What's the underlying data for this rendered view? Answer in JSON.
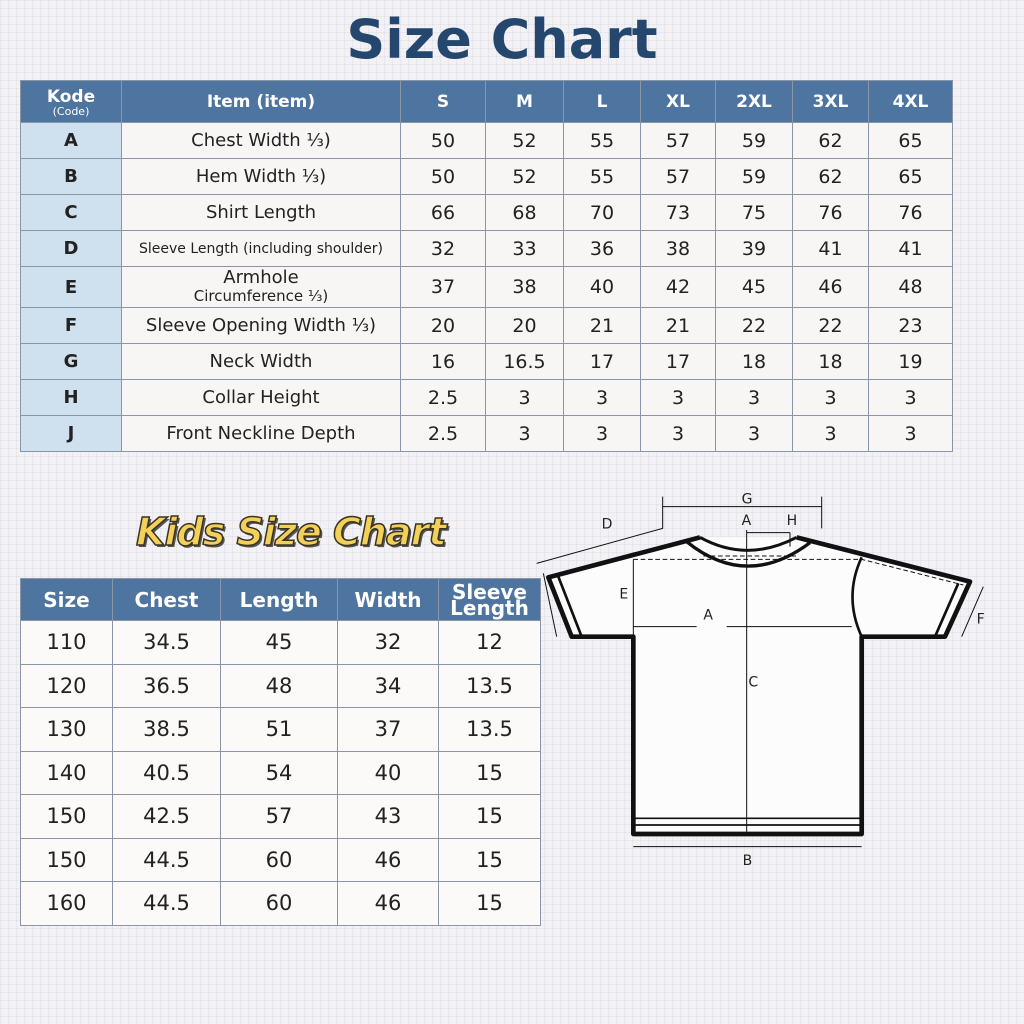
{
  "title": "Size Chart",
  "main_table": {
    "headers": {
      "code": "Kode",
      "code_sub": "(Code)",
      "item": "Item (item)",
      "sizes": [
        "S",
        "M",
        "L",
        "XL",
        "2XL",
        "3XL",
        "4XL"
      ]
    },
    "rows": [
      {
        "code": "A",
        "item": "Chest Width ⅓)",
        "values": [
          "50",
          "52",
          "55",
          "57",
          "59",
          "62",
          "65"
        ]
      },
      {
        "code": "B",
        "item": "Hem Width ⅓)",
        "values": [
          "50",
          "52",
          "55",
          "57",
          "59",
          "62",
          "65"
        ]
      },
      {
        "code": "C",
        "item": "Shirt Length",
        "values": [
          "66",
          "68",
          "70",
          "73",
          "75",
          "76",
          "76"
        ]
      },
      {
        "code": "D",
        "item": "Sleeve Length (including shoulder)",
        "values": [
          "32",
          "33",
          "36",
          "38",
          "39",
          "41",
          "41"
        ]
      },
      {
        "code": "E",
        "item": "Armhole",
        "item2": "Circumference ⅓)",
        "values": [
          "37",
          "38",
          "40",
          "42",
          "45",
          "46",
          "48"
        ]
      },
      {
        "code": "F",
        "item": "Sleeve Opening Width ⅓)",
        "values": [
          "20",
          "20",
          "21",
          "21",
          "22",
          "22",
          "23"
        ]
      },
      {
        "code": "G",
        "item": "Neck Width",
        "values": [
          "16",
          "16.5",
          "17",
          "17",
          "18",
          "18",
          "19"
        ]
      },
      {
        "code": "H",
        "item": "Collar Height",
        "values": [
          "2.5",
          "3",
          "3",
          "3",
          "3",
          "3",
          "3"
        ]
      },
      {
        "code": "J",
        "item": "Front Neckline Depth",
        "values": [
          "2.5",
          "3",
          "3",
          "3",
          "3",
          "3",
          "3"
        ]
      }
    ]
  },
  "kids_title": "Kids Size Chart",
  "kids_table": {
    "headers": [
      "Size",
      "Chest",
      "Length",
      "Width",
      "Sleeve Length"
    ],
    "rows": [
      [
        "110",
        "34.5",
        "45",
        "32",
        "12"
      ],
      [
        "120",
        "36.5",
        "48",
        "34",
        "13.5"
      ],
      [
        "130",
        "38.5",
        "51",
        "37",
        "13.5"
      ],
      [
        "140",
        "40.5",
        "54",
        "40",
        "15"
      ],
      [
        "150",
        "42.5",
        "57",
        "43",
        "15"
      ],
      [
        "150",
        "44.5",
        "60",
        "46",
        "15"
      ],
      [
        "160",
        "44.5",
        "60",
        "46",
        "15"
      ]
    ]
  },
  "diagram_labels": {
    "A": "A",
    "B": "B",
    "C": "C",
    "D": "D",
    "E": "E",
    "F": "F",
    "G": "G",
    "H": "H",
    "A_top": "A"
  },
  "colors": {
    "header": "#4e74a0",
    "title": "#25476d",
    "code_col": "#cfe0ef",
    "kids_title": "#f2d05a"
  }
}
